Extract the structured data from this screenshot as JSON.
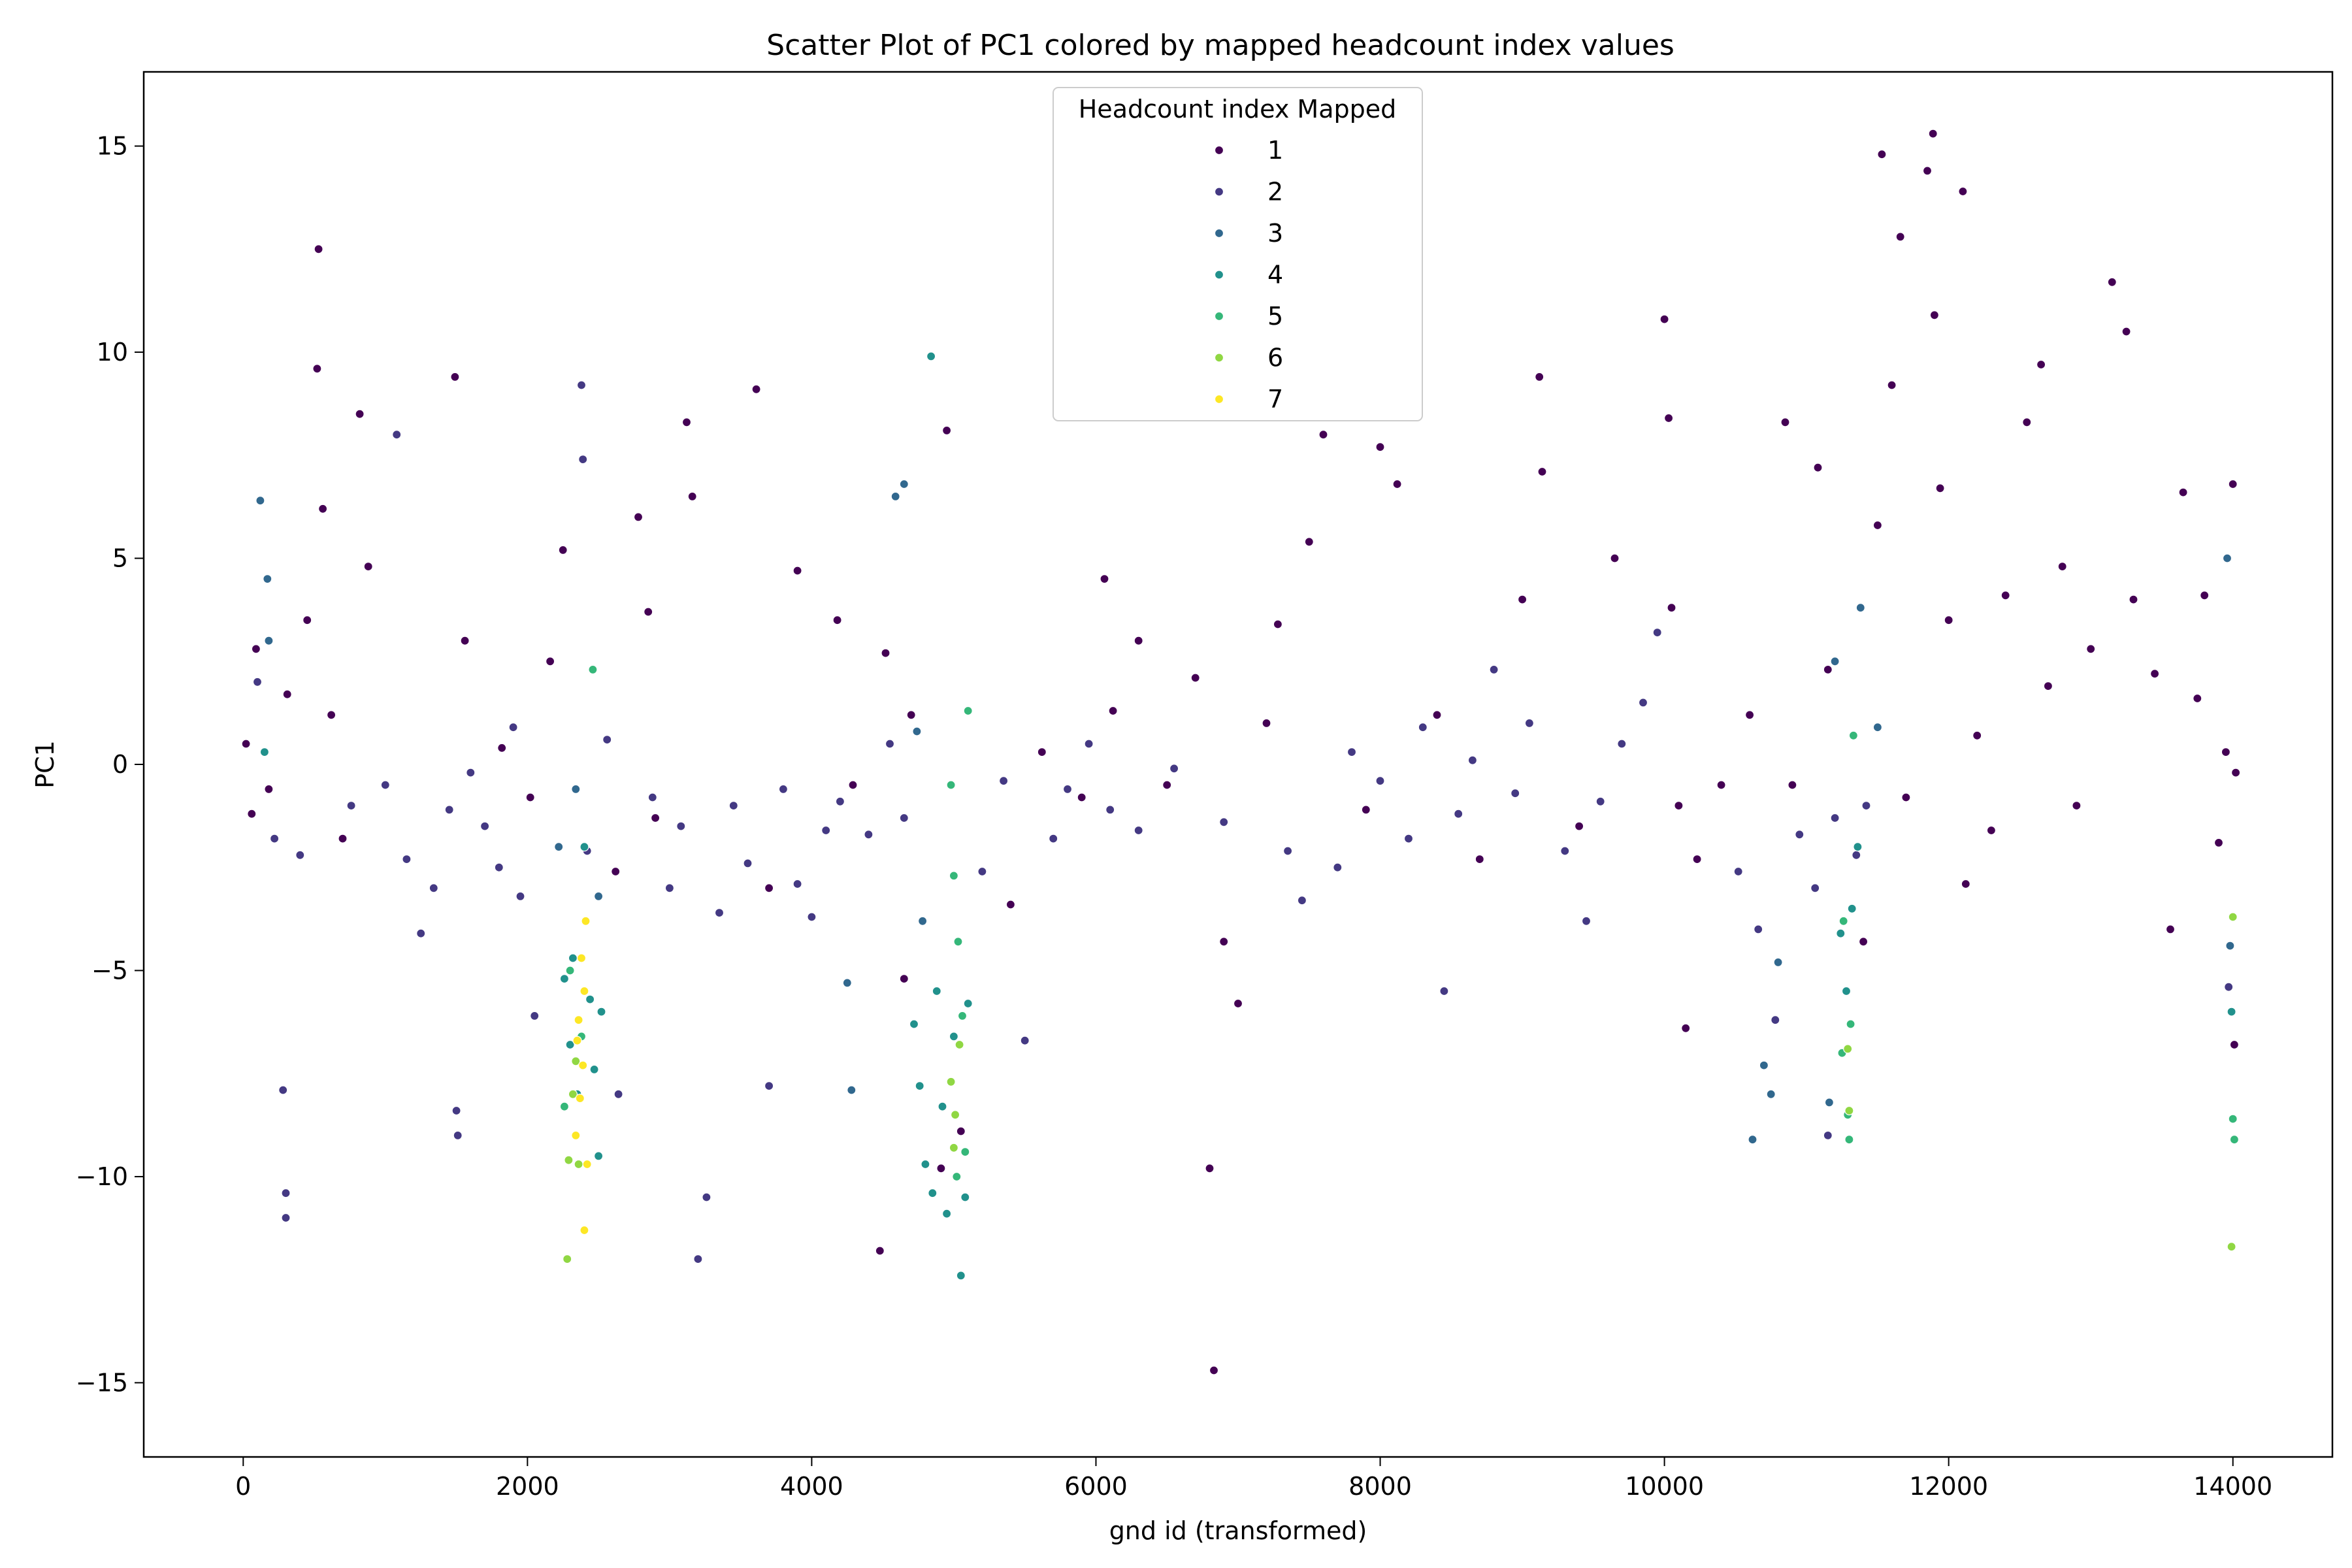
{
  "chart_data": {
    "type": "scatter",
    "title": "Scatter Plot of PC1 colored by mapped headcount index values",
    "xlabel": "gnd id (transformed)",
    "ylabel": "PC1",
    "xlim": [
      -700,
      14700
    ],
    "ylim": [
      -16.8,
      16.8
    ],
    "xticks": [
      0,
      2000,
      4000,
      6000,
      8000,
      10000,
      12000,
      14000
    ],
    "yticks": [
      -15,
      -10,
      -5,
      0,
      5,
      10,
      15
    ],
    "grid": false,
    "legend": {
      "title": "Headcount index Mapped",
      "placement": "top-center",
      "entries": [
        {
          "label": "1",
          "color": "#440154"
        },
        {
          "label": "2",
          "color": "#443983"
        },
        {
          "label": "3",
          "color": "#31688e"
        },
        {
          "label": "4",
          "color": "#21918c"
        },
        {
          "label": "5",
          "color": "#35b779"
        },
        {
          "label": "6",
          "color": "#90d743"
        },
        {
          "label": "7",
          "color": "#fde725"
        }
      ]
    },
    "series": [
      {
        "name": "1",
        "color": "#440154",
        "points": [
          [
            20,
            0.5
          ],
          [
            60,
            -1.2
          ],
          [
            90,
            2.8
          ],
          [
            180,
            -0.6
          ],
          [
            310,
            1.7
          ],
          [
            450,
            3.5
          ],
          [
            520,
            9.6
          ],
          [
            530,
            12.5
          ],
          [
            560,
            6.2
          ],
          [
            620,
            1.2
          ],
          [
            700,
            -1.8
          ],
          [
            820,
            8.5
          ],
          [
            880,
            4.8
          ],
          [
            1490,
            9.4
          ],
          [
            1560,
            3.0
          ],
          [
            1820,
            0.4
          ],
          [
            2020,
            -0.8
          ],
          [
            2160,
            2.5
          ],
          [
            2250,
            5.2
          ],
          [
            2620,
            -2.6
          ],
          [
            2780,
            6.0
          ],
          [
            2850,
            3.7
          ],
          [
            2900,
            -1.3
          ],
          [
            3120,
            8.3
          ],
          [
            3160,
            6.5
          ],
          [
            3610,
            9.1
          ],
          [
            3700,
            -3.0
          ],
          [
            3900,
            4.7
          ],
          [
            4180,
            3.5
          ],
          [
            4290,
            -0.5
          ],
          [
            4480,
            -11.8
          ],
          [
            4520,
            2.7
          ],
          [
            4650,
            -5.2
          ],
          [
            4700,
            1.2
          ],
          [
            4910,
            -9.8
          ],
          [
            4950,
            8.1
          ],
          [
            5050,
            -8.9
          ],
          [
            5400,
            -3.4
          ],
          [
            5620,
            0.3
          ],
          [
            5900,
            -0.8
          ],
          [
            6060,
            4.5
          ],
          [
            6120,
            1.3
          ],
          [
            6300,
            3.0
          ],
          [
            6500,
            -0.5
          ],
          [
            6700,
            2.1
          ],
          [
            6800,
            -9.8
          ],
          [
            6830,
            -14.7
          ],
          [
            6900,
            -4.3
          ],
          [
            7000,
            -5.8
          ],
          [
            7200,
            1.0
          ],
          [
            7280,
            3.4
          ],
          [
            7500,
            5.4
          ],
          [
            7600,
            8.0
          ],
          [
            7900,
            -1.1
          ],
          [
            8000,
            7.7
          ],
          [
            8120,
            6.8
          ],
          [
            8400,
            1.2
          ],
          [
            8700,
            -2.3
          ],
          [
            9000,
            4.0
          ],
          [
            9120,
            9.4
          ],
          [
            9140,
            7.1
          ],
          [
            9400,
            -1.5
          ],
          [
            9650,
            5.0
          ],
          [
            10000,
            10.8
          ],
          [
            10030,
            8.4
          ],
          [
            10050,
            3.8
          ],
          [
            10100,
            -1.0
          ],
          [
            10150,
            -6.4
          ],
          [
            10230,
            -2.3
          ],
          [
            10400,
            -0.5
          ],
          [
            10600,
            1.2
          ],
          [
            10850,
            8.3
          ],
          [
            10900,
            -0.5
          ],
          [
            11080,
            7.2
          ],
          [
            11150,
            2.3
          ],
          [
            11400,
            -4.3
          ],
          [
            11500,
            5.8
          ],
          [
            11530,
            14.8
          ],
          [
            11600,
            9.2
          ],
          [
            11660,
            12.8
          ],
          [
            11700,
            -0.8
          ],
          [
            11850,
            14.4
          ],
          [
            11890,
            15.3
          ],
          [
            11900,
            10.9
          ],
          [
            11940,
            6.7
          ],
          [
            12000,
            3.5
          ],
          [
            12100,
            13.9
          ],
          [
            12120,
            -2.9
          ],
          [
            12200,
            0.7
          ],
          [
            12300,
            -1.6
          ],
          [
            12400,
            4.1
          ],
          [
            12550,
            8.3
          ],
          [
            12650,
            9.7
          ],
          [
            12700,
            1.9
          ],
          [
            12800,
            4.8
          ],
          [
            12900,
            -1.0
          ],
          [
            13000,
            2.8
          ],
          [
            13150,
            11.7
          ],
          [
            13250,
            10.5
          ],
          [
            13300,
            4.0
          ],
          [
            13450,
            2.2
          ],
          [
            13560,
            -4.0
          ],
          [
            13650,
            6.6
          ],
          [
            13750,
            1.6
          ],
          [
            13800,
            4.1
          ],
          [
            13900,
            -1.9
          ],
          [
            13950,
            0.3
          ],
          [
            14000,
            6.8
          ],
          [
            14010,
            -6.8
          ],
          [
            14020,
            -0.2
          ]
        ]
      },
      {
        "name": "2",
        "color": "#443983",
        "points": [
          [
            100,
            2.0
          ],
          [
            220,
            -1.8
          ],
          [
            280,
            -7.9
          ],
          [
            300,
            -10.4
          ],
          [
            300,
            -11.0
          ],
          [
            400,
            -2.2
          ],
          [
            760,
            -1.0
          ],
          [
            1000,
            -0.5
          ],
          [
            1080,
            8.0
          ],
          [
            1150,
            -2.3
          ],
          [
            1250,
            -4.1
          ],
          [
            1340,
            -3.0
          ],
          [
            1450,
            -1.1
          ],
          [
            1500,
            -8.4
          ],
          [
            1510,
            -9.0
          ],
          [
            1600,
            -0.2
          ],
          [
            1700,
            -1.5
          ],
          [
            1800,
            -2.5
          ],
          [
            1900,
            0.9
          ],
          [
            1950,
            -3.2
          ],
          [
            2050,
            -6.1
          ],
          [
            2380,
            9.2
          ],
          [
            2390,
            7.4
          ],
          [
            2420,
            -2.1
          ],
          [
            2560,
            0.6
          ],
          [
            2640,
            -8.0
          ],
          [
            2880,
            -0.8
          ],
          [
            3000,
            -3.0
          ],
          [
            3080,
            -1.5
          ],
          [
            3200,
            -12.0
          ],
          [
            3260,
            -10.5
          ],
          [
            3350,
            -3.6
          ],
          [
            3450,
            -1.0
          ],
          [
            3550,
            -2.4
          ],
          [
            3700,
            -7.8
          ],
          [
            3800,
            -0.6
          ],
          [
            3900,
            -2.9
          ],
          [
            4000,
            -3.7
          ],
          [
            4100,
            -1.6
          ],
          [
            4200,
            -0.9
          ],
          [
            4400,
            -1.7
          ],
          [
            4550,
            0.5
          ],
          [
            4650,
            -1.3
          ],
          [
            5200,
            -2.6
          ],
          [
            5350,
            -0.4
          ],
          [
            5500,
            -6.7
          ],
          [
            5700,
            -1.8
          ],
          [
            5800,
            -0.6
          ],
          [
            5950,
            0.5
          ],
          [
            6100,
            -1.1
          ],
          [
            6300,
            -1.6
          ],
          [
            6550,
            -0.1
          ],
          [
            6900,
            -1.4
          ],
          [
            7350,
            -2.1
          ],
          [
            7450,
            -3.3
          ],
          [
            7700,
            -2.5
          ],
          [
            7800,
            0.3
          ],
          [
            8000,
            -0.4
          ],
          [
            8200,
            -1.8
          ],
          [
            8300,
            0.9
          ],
          [
            8450,
            -5.5
          ],
          [
            8550,
            -1.2
          ],
          [
            8650,
            0.1
          ],
          [
            8800,
            2.3
          ],
          [
            8950,
            -0.7
          ],
          [
            9050,
            1.0
          ],
          [
            9300,
            -2.1
          ],
          [
            9450,
            -3.8
          ],
          [
            9550,
            -0.9
          ],
          [
            9700,
            0.5
          ],
          [
            9850,
            1.5
          ],
          [
            9950,
            3.2
          ],
          [
            10520,
            -2.6
          ],
          [
            10660,
            -4.0
          ],
          [
            10780,
            -6.2
          ],
          [
            10950,
            -1.7
          ],
          [
            11060,
            -3.0
          ],
          [
            11150,
            -9.0
          ],
          [
            11200,
            -1.3
          ],
          [
            11350,
            -2.2
          ],
          [
            11420,
            -1.0
          ],
          [
            13970,
            -5.4
          ]
        ]
      },
      {
        "name": "3",
        "color": "#31688e",
        "points": [
          [
            120,
            6.4
          ],
          [
            170,
            4.5
          ],
          [
            180,
            3.0
          ],
          [
            2220,
            -2.0
          ],
          [
            2340,
            -0.6
          ],
          [
            2500,
            -3.2
          ],
          [
            4250,
            -5.3
          ],
          [
            4280,
            -7.9
          ],
          [
            4590,
            6.5
          ],
          [
            4650,
            6.8
          ],
          [
            4740,
            0.8
          ],
          [
            4780,
            -3.8
          ],
          [
            10620,
            -9.1
          ],
          [
            10700,
            -7.3
          ],
          [
            10750,
            -8.0
          ],
          [
            10800,
            -4.8
          ],
          [
            11160,
            -8.2
          ],
          [
            11200,
            2.5
          ],
          [
            11380,
            3.8
          ],
          [
            11500,
            0.9
          ],
          [
            13960,
            5.0
          ],
          [
            13980,
            -4.4
          ]
        ]
      },
      {
        "name": "4",
        "color": "#21918c",
        "points": [
          [
            150,
            0.3
          ],
          [
            2260,
            -5.2
          ],
          [
            2300,
            -6.8
          ],
          [
            2320,
            -4.7
          ],
          [
            2350,
            -8.0
          ],
          [
            2400,
            -2.0
          ],
          [
            2440,
            -5.7
          ],
          [
            2470,
            -7.4
          ],
          [
            2500,
            -9.5
          ],
          [
            2520,
            -6.0
          ],
          [
            4720,
            -6.3
          ],
          [
            4760,
            -7.8
          ],
          [
            4800,
            -9.7
          ],
          [
            4840,
            9.9
          ],
          [
            4850,
            -10.4
          ],
          [
            4880,
            -5.5
          ],
          [
            4920,
            -8.3
          ],
          [
            4950,
            -10.9
          ],
          [
            5000,
            -6.6
          ],
          [
            5050,
            -12.4
          ],
          [
            5080,
            -10.5
          ],
          [
            5100,
            -5.8
          ],
          [
            11240,
            -4.1
          ],
          [
            11280,
            -5.5
          ],
          [
            11320,
            -3.5
          ],
          [
            11360,
            -2.0
          ],
          [
            13990,
            -6.0
          ]
        ]
      },
      {
        "name": "5",
        "color": "#35b779",
        "points": [
          [
            2260,
            -8.3
          ],
          [
            2300,
            -5.0
          ],
          [
            2380,
            -6.6
          ],
          [
            2460,
            2.3
          ],
          [
            4980,
            -0.5
          ],
          [
            5000,
            -2.7
          ],
          [
            5030,
            -4.3
          ],
          [
            5060,
            -6.1
          ],
          [
            5080,
            -9.4
          ],
          [
            5100,
            1.3
          ],
          [
            5020,
            -10.0
          ],
          [
            11250,
            -7.0
          ],
          [
            11290,
            -8.5
          ],
          [
            11300,
            -9.1
          ],
          [
            11330,
            0.7
          ],
          [
            11260,
            -3.8
          ],
          [
            11310,
            -6.3
          ],
          [
            14000,
            -8.6
          ],
          [
            14010,
            -9.1
          ]
        ]
      },
      {
        "name": "6",
        "color": "#90d743",
        "points": [
          [
            2280,
            -12.0
          ],
          [
            2290,
            -9.6
          ],
          [
            2320,
            -8.0
          ],
          [
            2360,
            -9.7
          ],
          [
            2340,
            -7.2
          ],
          [
            4980,
            -7.7
          ],
          [
            5010,
            -8.5
          ],
          [
            5000,
            -9.3
          ],
          [
            5040,
            -6.8
          ],
          [
            11290,
            -6.9
          ],
          [
            11300,
            -8.4
          ],
          [
            13990,
            -11.7
          ],
          [
            14000,
            -3.7
          ]
        ]
      },
      {
        "name": "7",
        "color": "#fde725",
        "points": [
          [
            2340,
            -9.0
          ],
          [
            2360,
            -6.2
          ],
          [
            2370,
            -8.1
          ],
          [
            2380,
            -4.7
          ],
          [
            2390,
            -7.3
          ],
          [
            2400,
            -5.5
          ],
          [
            2410,
            -3.8
          ],
          [
            2420,
            -9.7
          ],
          [
            2400,
            -11.3
          ],
          [
            2350,
            -6.7
          ]
        ]
      }
    ]
  }
}
